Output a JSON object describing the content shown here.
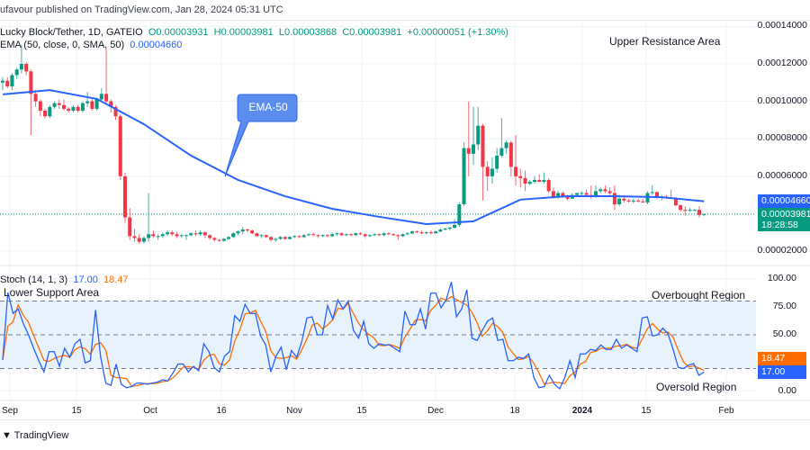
{
  "header": {
    "publisher": "ufavour published on TradingView.com, Jan 28, 2024 05:31 UTC"
  },
  "legend": {
    "symbol": "Lucky Block/Tether, 1D, GATEIO",
    "open": "O0.00003931",
    "high": "H0.00003981",
    "low": "L0.00003868",
    "close": "C0.00003981",
    "change": "+0.00000051 (+1.30%)",
    "ema_label": "EMA (50, close, 0, SMA, 50)",
    "ema_value": "0.00004660",
    "stoch_label": "Stoch (14, 1, 3)",
    "stoch_k": "17.00",
    "stoch_d": "18.47"
  },
  "annotations": {
    "upper": "Upper Resistance Area",
    "ema_callout": "EMA-50",
    "lower": "Lower Support Area",
    "overbought": "Overbought Region",
    "oversold": "Oversold Region"
  },
  "price_tags": {
    "ema": "0.00004660",
    "last": "0.00003981",
    "countdown": "18:28:58"
  },
  "stoch_tags": {
    "d": "18.47",
    "k": "17.00"
  },
  "footer": {
    "logo": "TradingView"
  },
  "colors": {
    "up": "#089981",
    "down": "#f23645",
    "ema": "#2962ff",
    "k": "#2962ff",
    "d": "#ff6d00",
    "band": "#e3f0fc"
  },
  "chart_data": [
    {
      "type": "candlestick",
      "title": "Lucky Block/Tether, 1D, GATEIO",
      "price_axis": {
        "ylim": [
          1.5e-05,
          0.000143
        ],
        "ticks": [
          "0.00014000",
          "0.00012000",
          "0.00010000",
          "0.00008000",
          "0.00006000",
          "0.00002000"
        ],
        "tick_values": [
          0.00014,
          0.00012,
          0.0001,
          8e-05,
          6e-05,
          2e-05
        ]
      },
      "x_ticks": [
        "Sep",
        "15",
        "Oct",
        "16",
        "Nov",
        "15",
        "Dec",
        "18",
        "2024",
        "15",
        "Feb"
      ],
      "grid": true,
      "candles_ohlc": [
        [
          0.00011,
          0.000113,
          0.000106,
          0.000111
        ],
        [
          0.000111,
          0.000113,
          0.000107,
          0.000108
        ],
        [
          0.000108,
          0.000115,
          0.000106,
          0.000114
        ],
        [
          0.000114,
          0.000118,
          0.000112,
          0.000117
        ],
        [
          0.000117,
          0.00013,
          0.000115,
          0.00012
        ],
        [
          0.00012,
          0.000121,
          0.000114,
          0.000116
        ],
        [
          0.000116,
          0.000117,
          8.2e-05,
          0.000104
        ],
        [
          0.000104,
          0.000106,
          9.7e-05,
          0.0001
        ],
        [
          0.0001,
          0.000101,
          9.2e-05,
          9.5e-05
        ],
        [
          9.5e-05,
          9.6e-05,
          9.1e-05,
          9.2e-05
        ],
        [
          9.2e-05,
          9.8e-05,
          9.1e-05,
          9.7e-05
        ],
        [
          9.7e-05,
          0.0001,
          9.6e-05,
          9.9e-05
        ],
        [
          9.9e-05,
          0.000101,
          9.6e-05,
          9.8e-05
        ],
        [
          9.8e-05,
          0.000101,
          9.5e-05,
          9.6e-05
        ],
        [
          9.6e-05,
          9.7e-05,
          9.4e-05,
          9.5e-05
        ],
        [
          9.5e-05,
          9.8e-05,
          9.4e-05,
          9.7e-05
        ],
        [
          9.7e-05,
          9.8e-05,
          9.4e-05,
          9.5e-05
        ],
        [
          9.5e-05,
          0.0001,
          9.4e-05,
          9.9e-05
        ],
        [
          9.9e-05,
          0.000105,
          9.7e-05,
          0.0001
        ],
        [
          0.0001,
          0.000101,
          9.5e-05,
          9.6e-05
        ],
        [
          9.6e-05,
          0.000102,
          9.5e-05,
          0.000101
        ],
        [
          0.000101,
          0.000107,
          0.0001,
          0.000104
        ],
        [
          0.000104,
          0.000128,
          9.8e-05,
          0.0001
        ],
        [
          0.0001,
          0.000101,
          9.4e-05,
          9.7e-05
        ],
        [
          9.7e-05,
          9.8e-05,
          9e-05,
          9.2e-05
        ],
        [
          9.2e-05,
          9.3e-05,
          5.8e-05,
          6e-05
        ],
        [
          6e-05,
          6.2e-05,
          3.5e-05,
          3.8e-05
        ],
        [
          3.8e-05,
          4.3e-05,
          2.6e-05,
          2.8e-05
        ],
        [
          2.8e-05,
          3.2e-05,
          2.5e-05,
          2.7e-05
        ],
        [
          2.7e-05,
          2.9e-05,
          2.4e-05,
          2.5e-05
        ],
        [
          2.5e-05,
          2.8e-05,
          2.4e-05,
          2.7e-05
        ],
        [
          2.7e-05,
          5.1e-05,
          2.5e-05,
          2.9e-05
        ],
        [
          2.9e-05,
          3.1e-05,
          2.7e-05,
          2.8e-05
        ],
        [
          2.8e-05,
          2.9e-05,
          2.6e-05,
          2.8e-05
        ],
        [
          2.8e-05,
          3e-05,
          2.7e-05,
          2.9e-05
        ],
        [
          2.9e-05,
          3.1e-05,
          2.8e-05,
          3e-05
        ],
        [
          3e-05,
          3.1e-05,
          2.8e-05,
          2.9e-05
        ],
        [
          2.9e-05,
          3e-05,
          2.7e-05,
          2.8e-05
        ],
        [
          2.8e-05,
          2.9e-05,
          2.7e-05,
          2.85e-05
        ],
        [
          2.85e-05,
          2.9e-05,
          2.6e-05,
          2.85e-05
        ],
        [
          2.85e-05,
          3e-05,
          2.8e-05,
          2.95e-05
        ],
        [
          2.95e-05,
          3.1e-05,
          2.8e-05,
          2.9e-05
        ],
        [
          2.9e-05,
          3.1e-05,
          2.8e-05,
          3e-05
        ],
        [
          3e-05,
          3.05e-05,
          2.7e-05,
          2.85e-05
        ],
        [
          2.85e-05,
          2.9e-05,
          2.6e-05,
          2.7e-05
        ],
        [
          2.7e-05,
          2.75e-05,
          2.5e-05,
          2.6e-05
        ],
        [
          2.6e-05,
          2.65e-05,
          2.5e-05,
          2.55e-05
        ],
        [
          2.55e-05,
          2.7e-05,
          2.5e-05,
          2.65e-05
        ],
        [
          2.65e-05,
          2.8e-05,
          2.6e-05,
          2.75e-05
        ],
        [
          2.75e-05,
          3e-05,
          2.7e-05,
          2.95e-05
        ],
        [
          2.95e-05,
          3.1e-05,
          2.85e-05,
          3.05e-05
        ],
        [
          3.05e-05,
          3.3e-05,
          2.9e-05,
          3.15e-05
        ],
        [
          3.15e-05,
          3.2e-05,
          3e-05,
          3.1e-05
        ],
        [
          3.1e-05,
          3.15e-05,
          2.9e-05,
          2.95e-05
        ],
        [
          2.95e-05,
          3e-05,
          2.75e-05,
          2.8e-05
        ],
        [
          2.8e-05,
          2.9e-05,
          2.7e-05,
          2.85e-05
        ],
        [
          2.85e-05,
          2.9e-05,
          2.7e-05,
          2.75e-05
        ],
        [
          2.75e-05,
          2.8e-05,
          2.5e-05,
          2.6e-05
        ],
        [
          2.6e-05,
          2.7e-05,
          2.5e-05,
          2.65e-05
        ],
        [
          2.65e-05,
          2.8e-05,
          2.6e-05,
          2.75e-05
        ],
        [
          2.75e-05,
          2.8e-05,
          2.6e-05,
          2.65e-05
        ],
        [
          2.65e-05,
          2.8e-05,
          2.6e-05,
          2.75e-05
        ],
        [
          2.75e-05,
          2.85e-05,
          2.7e-05,
          2.8e-05
        ],
        [
          2.8e-05,
          2.85e-05,
          2.7e-05,
          2.75e-05
        ],
        [
          2.75e-05,
          2.9e-05,
          2.7e-05,
          2.85e-05
        ],
        [
          2.85e-05,
          2.95e-05,
          2.8e-05,
          2.9e-05
        ],
        [
          2.9e-05,
          3e-05,
          2.8e-05,
          2.85e-05
        ],
        [
          2.85e-05,
          2.9e-05,
          2.7e-05,
          2.8e-05
        ],
        [
          2.8e-05,
          2.9e-05,
          2.75e-05,
          2.85e-05
        ],
        [
          2.85e-05,
          2.9e-05,
          2.75e-05,
          2.8e-05
        ],
        [
          2.8e-05,
          3e-05,
          2.75e-05,
          2.9e-05
        ],
        [
          2.9e-05,
          3e-05,
          2.8e-05,
          2.95e-05
        ],
        [
          2.95e-05,
          3e-05,
          2.8e-05,
          2.85e-05
        ],
        [
          2.85e-05,
          2.95e-05,
          2.8e-05,
          2.9e-05
        ],
        [
          2.9e-05,
          2.95e-05,
          2.8e-05,
          2.85e-05
        ],
        [
          2.85e-05,
          3e-05,
          2.8e-05,
          2.95e-05
        ],
        [
          2.95e-05,
          3e-05,
          2.85e-05,
          2.9e-05
        ],
        [
          2.9e-05,
          2.95e-05,
          2.7e-05,
          2.8e-05
        ],
        [
          2.8e-05,
          2.9e-05,
          2.75e-05,
          2.85e-05
        ],
        [
          2.85e-05,
          2.95e-05,
          2.8e-05,
          2.9e-05
        ],
        [
          2.9e-05,
          2.95e-05,
          2.8e-05,
          2.85e-05
        ],
        [
          2.85e-05,
          3e-05,
          2.8e-05,
          2.95e-05
        ],
        [
          2.95e-05,
          3e-05,
          2.85e-05,
          2.9e-05
        ],
        [
          2.9e-05,
          2.95e-05,
          2.8e-05,
          2.85e-05
        ],
        [
          2.85e-05,
          2.9e-05,
          2.6e-05,
          2.8e-05
        ],
        [
          2.8e-05,
          2.95e-05,
          2.75e-05,
          2.9e-05
        ],
        [
          2.9e-05,
          3e-05,
          2.85e-05,
          2.95e-05
        ],
        [
          2.95e-05,
          3.1e-05,
          2.9e-05,
          3.05e-05
        ],
        [
          3.05e-05,
          3.1e-05,
          2.95e-05,
          3e-05
        ],
        [
          3e-05,
          3.1e-05,
          2.9e-05,
          2.95e-05
        ],
        [
          2.95e-05,
          3.05e-05,
          2.9e-05,
          3e-05
        ],
        [
          3e-05,
          3.1e-05,
          2.9e-05,
          2.95e-05
        ],
        [
          2.95e-05,
          3.1e-05,
          2.95e-05,
          3.05e-05
        ],
        [
          3.05e-05,
          3.2e-05,
          3e-05,
          3.15e-05
        ],
        [
          3.15e-05,
          3.25e-05,
          3.1e-05,
          3.2e-05
        ],
        [
          3.2e-05,
          3.3e-05,
          3.1e-05,
          3.25e-05
        ],
        [
          3.25e-05,
          3.7e-05,
          3.2e-05,
          3.4e-05
        ],
        [
          3.4e-05,
          4.6e-05,
          3.3e-05,
          4.5e-05
        ],
        [
          4.5e-05,
          7.8e-05,
          4.4e-05,
          7.5e-05
        ],
        [
          7.5e-05,
          0.0001,
          6e-05,
          7.2e-05
        ],
        [
          7.2e-05,
          9.7e-05,
          6.6e-05,
          7.7e-05
        ],
        [
          7.7e-05,
          9.7e-05,
          7.4e-05,
          8.7e-05
        ],
        [
          8.7e-05,
          8.8e-05,
          4.7e-05,
          6.5e-05
        ],
        [
          6.5e-05,
          6.8e-05,
          5.2e-05,
          6e-05
        ],
        [
          6e-05,
          7e-05,
          5.6e-05,
          6.4e-05
        ],
        [
          6.4e-05,
          7.5e-05,
          6.2e-05,
          7.1e-05
        ],
        [
          7.1e-05,
          9.1e-05,
          7e-05,
          7.5e-05
        ],
        [
          7.5e-05,
          7.9e-05,
          7.2e-05,
          7.8e-05
        ],
        [
          7.8e-05,
          7.9e-05,
          6e-05,
          6.5e-05
        ],
        [
          6.5e-05,
          8.2e-05,
          5.5e-05,
          6e-05
        ],
        [
          6e-05,
          6.4e-05,
          5.4e-05,
          5.9e-05
        ],
        [
          5.9e-05,
          6.3e-05,
          5.2e-05,
          5.6e-05
        ],
        [
          5.6e-05,
          5.8e-05,
          5.5e-05,
          5.7e-05
        ],
        [
          5.7e-05,
          6e-05,
          5.6e-05,
          5.8e-05
        ],
        [
          5.8e-05,
          6.1e-05,
          5.7e-05,
          5.7e-05
        ],
        [
          5.7e-05,
          6.2e-05,
          5.6e-05,
          5.8e-05
        ],
        [
          5.8e-05,
          5.9e-05,
          5.1e-05,
          5.2e-05
        ],
        [
          5.2e-05,
          5.4e-05,
          4.8e-05,
          4.9e-05
        ],
        [
          4.9e-05,
          5.2e-05,
          4.8e-05,
          5.1e-05
        ],
        [
          5.1e-05,
          5.2e-05,
          4.85e-05,
          4.9e-05
        ],
        [
          4.9e-05,
          5e-05,
          4.7e-05,
          4.8e-05
        ],
        [
          4.8e-05,
          5.1e-05,
          4.8e-05,
          5e-05
        ],
        [
          5e-05,
          5.1e-05,
          4.9e-05,
          5.1e-05
        ],
        [
          5.1e-05,
          5.2e-05,
          4.9e-05,
          5.1e-05
        ],
        [
          5.1e-05,
          5.3e-05,
          5e-05,
          5e-05
        ],
        [
          5e-05,
          5.5e-05,
          4.8e-05,
          4.9e-05
        ],
        [
          4.9e-05,
          5.5e-05,
          4.85e-05,
          5.2e-05
        ],
        [
          5.2e-05,
          5.4e-05,
          5.1e-05,
          5.3e-05
        ],
        [
          5.3e-05,
          5.5e-05,
          5.1e-05,
          5.2e-05
        ],
        [
          5.2e-05,
          5.4e-05,
          5e-05,
          5.1e-05
        ],
        [
          5.1e-05,
          5.5e-05,
          4.2e-05,
          4.5e-05
        ],
        [
          4.5e-05,
          5e-05,
          4.4e-05,
          4.8e-05
        ],
        [
          4.8e-05,
          5e-05,
          4.6e-05,
          4.7e-05
        ],
        [
          4.7e-05,
          4.8e-05,
          4.6e-05,
          4.65e-05
        ],
        [
          4.65e-05,
          4.8e-05,
          4.55e-05,
          4.7e-05
        ],
        [
          4.7e-05,
          4.8e-05,
          4.6e-05,
          4.65e-05
        ],
        [
          4.65e-05,
          4.8e-05,
          4.6e-05,
          4.6e-05
        ],
        [
          4.6e-05,
          5.2e-05,
          4.5e-05,
          5.1e-05
        ],
        [
          5.1e-05,
          5.5e-05,
          5e-05,
          5.15e-05
        ],
        [
          5.15e-05,
          5.2e-05,
          4.8e-05,
          4.85e-05
        ],
        [
          4.85e-05,
          5e-05,
          4.7e-05,
          4.9e-05
        ],
        [
          4.9e-05,
          5e-05,
          4.8e-05,
          4.85e-05
        ],
        [
          4.85e-05,
          5.3e-05,
          4.8e-05,
          4.8e-05
        ],
        [
          4.8e-05,
          4.9e-05,
          4.4e-05,
          4.45e-05
        ],
        [
          4.45e-05,
          4.5e-05,
          4.1e-05,
          4.2e-05
        ],
        [
          4.2e-05,
          4.4e-05,
          3.9e-05,
          4.15e-05
        ],
        [
          4.15e-05,
          4.3e-05,
          4.1e-05,
          4.2e-05
        ],
        [
          4.2e-05,
          4.25e-05,
          4.15e-05,
          4.2e-05
        ],
        [
          4.2e-05,
          4.4e-05,
          3.8e-05,
          3.93e-05
        ],
        [
          3.931e-05,
          3.981e-05,
          3.868e-05,
          3.981e-05
        ]
      ],
      "ema_50": {
        "name": "EMA (50, close, 0, SMA, 50)",
        "values": [
          0.0001037,
          0.000106,
          0.0001013,
          8.78e-05,
          7.1e-05,
          5.8e-05,
          4.93e-05,
          4.26e-05,
          3.83e-05,
          3.44e-05,
          3.59e-05,
          4.75e-05,
          4.93e-05,
          4.93e-05,
          4.88e-05,
          4.66e-05
        ]
      },
      "last_price": 3.981e-05
    },
    {
      "type": "line",
      "title": "Stoch (14, 1, 3)",
      "ylim": [
        0,
        100
      ],
      "ticks": [
        "100.00",
        "75.00",
        "50.00",
        "0.00"
      ],
      "tick_values": [
        100,
        75,
        50,
        0
      ],
      "bands": {
        "upper": 80,
        "middle": 50,
        "lower": 20
      },
      "series": [
        {
          "name": "%K",
          "last": 17.0,
          "values": [
            27.6,
            87.6,
            69,
            73,
            60,
            50,
            38,
            27,
            17,
            35,
            35,
            22,
            38,
            30,
            42,
            46,
            25,
            27,
            72,
            30,
            7,
            5,
            24,
            6,
            3,
            4,
            7,
            7,
            6,
            7,
            8,
            10,
            9,
            16,
            24,
            24,
            17,
            22,
            18,
            42,
            35,
            21,
            17,
            31,
            35,
            67,
            62,
            77,
            69,
            69,
            49,
            41,
            17,
            31,
            39,
            19,
            36,
            30,
            44,
            65,
            66,
            50,
            50,
            76,
            64,
            81,
            73,
            80,
            54,
            47,
            62,
            42,
            38,
            42,
            41,
            41,
            38,
            35,
            71,
            59,
            59,
            73,
            55,
            87,
            87,
            74,
            81,
            97,
            66,
            73,
            90,
            47,
            45,
            54,
            62,
            65,
            45,
            46,
            27,
            27,
            30,
            29,
            33,
            12,
            3,
            4,
            14,
            6,
            2,
            12,
            27,
            12,
            33,
            33,
            37,
            36,
            41,
            37,
            37,
            46,
            38,
            41,
            38,
            35,
            65,
            66,
            49,
            50,
            56,
            51,
            37,
            21,
            20,
            23,
            24.4,
            14,
            17
          ]
        },
        {
          "name": "%D",
          "last": 18.47,
          "smoothing": 3
        }
      ]
    }
  ]
}
